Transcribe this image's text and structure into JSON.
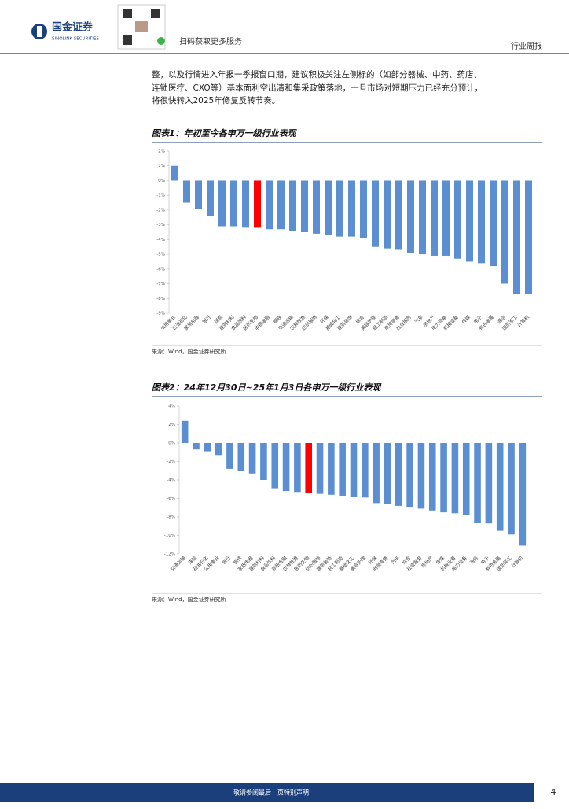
{
  "header": {
    "logo_text": "国金证券",
    "logo_subtext": "SINOLINK SECURITIES",
    "qr_caption": "扫码获取更多服务",
    "report_type": "行业周报"
  },
  "paragraph": [
    "整，以及行情进入年报一季报窗口期，建议积极关注左侧标的（如部分器械、中药、药店、",
    "连锁医疗、CXO等）基本面利空出清和集采政策落地，一旦市场对短期压力已经充分预计，",
    "将很快转入2025年修复反转节奏。"
  ],
  "chart_data": [
    {
      "type": "bar",
      "title": "图表1：年初至今各申万一级行业表现",
      "source": "来源：Wind，国金证券研究所",
      "categories": [
        "公用事业",
        "石油石化",
        "家用电器",
        "银行",
        "煤炭",
        "建筑材料",
        "食品饮料",
        "医药生物",
        "非银金融",
        "钢铁",
        "交通运输",
        "农林牧渔",
        "纺织服饰",
        "环保",
        "基础化工",
        "建筑装饰",
        "综合",
        "美容护理",
        "轻工制造",
        "商贸零售",
        "社会服务",
        "汽车",
        "房地产",
        "电力设备",
        "机械设备",
        "传媒",
        "电子",
        "有色金属",
        "通信",
        "国防军工",
        "计算机"
      ],
      "values": [
        1.0,
        -1.5,
        -1.9,
        -2.4,
        -3.1,
        -3.1,
        -3.2,
        -3.2,
        -3.3,
        -3.3,
        -3.4,
        -3.5,
        -3.6,
        -3.7,
        -3.8,
        -3.8,
        -3.9,
        -4.5,
        -4.6,
        -4.7,
        -4.9,
        -5.0,
        -5.1,
        -5.1,
        -5.3,
        -5.5,
        -5.6,
        -5.8,
        -7.0,
        -7.7,
        -7.7
      ],
      "color": "#5b8fd2",
      "highlight_category": "医药生物",
      "highlight_color": "#ff0000",
      "ylim": [
        -9,
        2
      ],
      "yticks": [
        {
          "value": 2,
          "label": "2%"
        },
        {
          "value": 1,
          "label": "1%"
        },
        {
          "value": 0,
          "label": "0%"
        },
        {
          "value": -1,
          "label": "-1%"
        },
        {
          "value": -2,
          "label": "-2%"
        },
        {
          "value": -3,
          "label": "-3%"
        },
        {
          "value": -4,
          "label": "-4%"
        },
        {
          "value": -5,
          "label": "-5%"
        },
        {
          "value": -6,
          "label": "-6%"
        },
        {
          "value": -7,
          "label": "-7%"
        },
        {
          "value": -8,
          "label": "-8%"
        },
        {
          "value": -9,
          "label": "-9%"
        }
      ]
    },
    {
      "type": "bar",
      "title": "图表2：24年12月30日~25年1月3日各申万一级行业表现",
      "source": "来源：Wind，国金证券研究所",
      "categories": [
        "交通运输",
        "煤炭",
        "石油石化",
        "公用事业",
        "银行",
        "钢铁",
        "家用电器",
        "建筑材料",
        "食品饮料",
        "非银金融",
        "农林牧渔",
        "医药生物",
        "纺织服饰",
        "建筑装饰",
        "轻工制造",
        "基础化工",
        "美容护理",
        "环保",
        "商贸零售",
        "汽车",
        "综合",
        "社会服务",
        "房地产",
        "传媒",
        "机械设备",
        "电力设备",
        "通信",
        "电子",
        "有色金属",
        "国防军工",
        "计算机"
      ],
      "values": [
        2.4,
        -0.7,
        -0.9,
        -1.3,
        -2.8,
        -3.0,
        -3.3,
        -4.0,
        -4.9,
        -5.2,
        -5.3,
        -5.4,
        -5.5,
        -5.6,
        -5.7,
        -5.8,
        -5.9,
        -6.5,
        -6.6,
        -6.8,
        -6.9,
        -7.1,
        -7.3,
        -7.5,
        -7.6,
        -7.8,
        -8.6,
        -8.7,
        -9.5,
        -9.9,
        -11.1
      ],
      "color": "#5b8fd2",
      "highlight_category": "医药生物",
      "highlight_color": "#ff0000",
      "ylim": [
        -12,
        4
      ],
      "yticks": [
        {
          "value": 4,
          "label": "4%"
        },
        {
          "value": 2,
          "label": "2%"
        },
        {
          "value": 0,
          "label": "0%"
        },
        {
          "value": -2,
          "label": "-2%"
        },
        {
          "value": -4,
          "label": "-4%"
        },
        {
          "value": -6,
          "label": "-6%"
        },
        {
          "value": -8,
          "label": "-8%"
        },
        {
          "value": -10,
          "label": "-10%"
        },
        {
          "value": -12,
          "label": "-12%"
        }
      ]
    }
  ],
  "footer": {
    "notice": "敬请参阅最后一页特别声明",
    "page_number": "4"
  }
}
